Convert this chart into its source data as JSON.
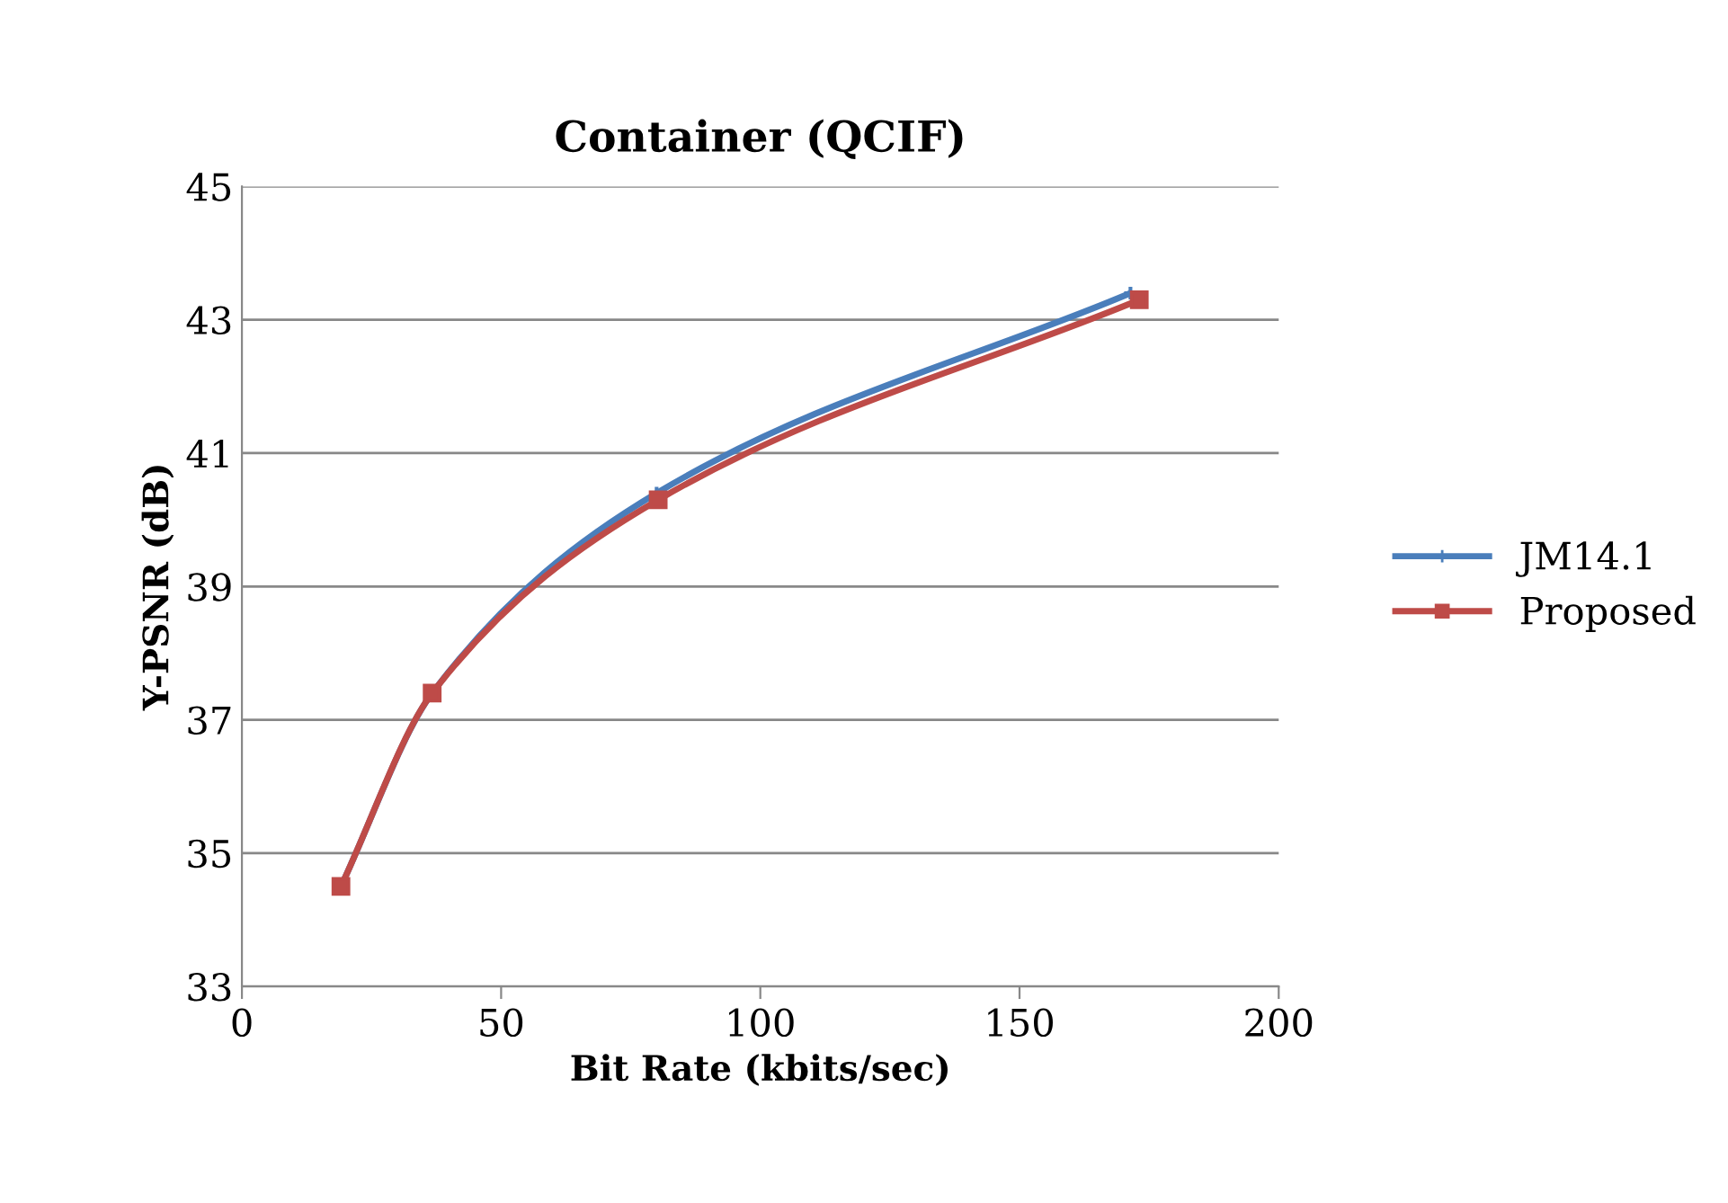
{
  "chart_data": {
    "type": "line",
    "title": "Container (QCIF)",
    "xlabel": "Bit Rate (kbits/sec)",
    "ylabel": "Y-PSNR (dB)",
    "series": [
      {
        "name": "JM14.1",
        "color": "#4a7ebb",
        "x": [
          19.1,
          36.7,
          80.0,
          171.4
        ],
        "values": [
          34.5,
          37.4,
          40.4,
          43.4
        ],
        "marker": "cross"
      },
      {
        "name": "Proposed",
        "color": "#be4b48",
        "x": [
          19.1,
          36.7,
          80.3,
          173.1
        ],
        "values": [
          34.5,
          37.4,
          40.3,
          43.3
        ],
        "marker": "square"
      }
    ],
    "xlim": [
      0,
      200
    ],
    "xticks": [
      0,
      50,
      100,
      150,
      200
    ],
    "ylim": [
      33,
      45
    ],
    "yticks": [
      33,
      35,
      37,
      39,
      41,
      43,
      45
    ],
    "grid": "y",
    "legend": "right",
    "line_style": "solid"
  }
}
